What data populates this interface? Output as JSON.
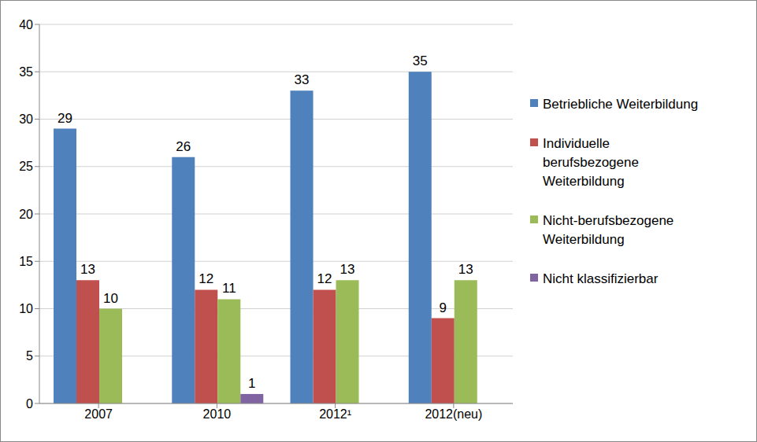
{
  "chart_data": {
    "type": "bar",
    "categories": [
      "2007",
      "2010",
      "2012¹",
      "2012(neu)"
    ],
    "series": [
      {
        "name": "Betriebliche Weiterbildung",
        "color": "#4f81bd",
        "values": [
          29,
          26,
          33,
          35
        ]
      },
      {
        "name": "Individuelle berufsbezogene Weiterbildung",
        "color": "#c0504d",
        "values": [
          13,
          12,
          12,
          9
        ]
      },
      {
        "name": "Nicht-berufsbezogene Weiterbildung",
        "color": "#9bbb59",
        "values": [
          10,
          11,
          13,
          13
        ]
      },
      {
        "name": "Nicht klassifizierbar",
        "color": "#8064a2",
        "values": [
          0,
          1,
          0,
          0
        ]
      }
    ],
    "ylim": [
      0,
      40
    ],
    "yticks": [
      0,
      5,
      10,
      15,
      20,
      25,
      30,
      35,
      40
    ],
    "grid": true,
    "data_labels": true,
    "legend": "right"
  }
}
